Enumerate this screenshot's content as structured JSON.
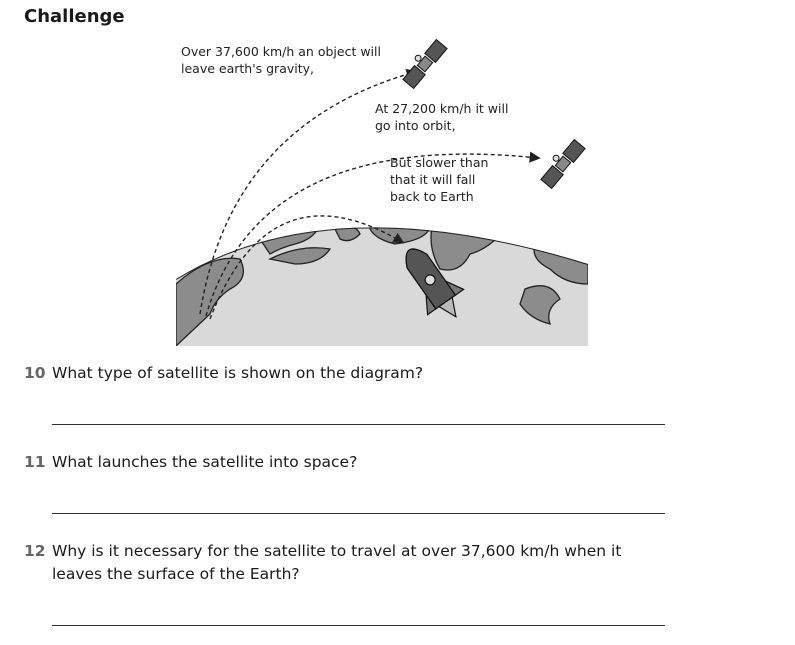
{
  "page": {
    "heading": "Challenge"
  },
  "diagram": {
    "label_escape_1": "Over 37,600 km/h an object will",
    "label_escape_2": "leave earth's gravity,",
    "label_orbit_1": "At 27,200 km/h it will",
    "label_orbit_2": "go into orbit,",
    "label_fall_1": "But slower than",
    "label_fall_2": "that it will fall",
    "label_fall_3": "back to Earth"
  },
  "questions": [
    {
      "number": "10",
      "text": "What type of satellite is shown on the diagram?"
    },
    {
      "number": "11",
      "text": "What launches the satellite into space?"
    },
    {
      "number": "12",
      "text": "Why is it necessary for the satellite to travel at over 37,600 km/h when it leaves the surface of the Earth?"
    }
  ]
}
